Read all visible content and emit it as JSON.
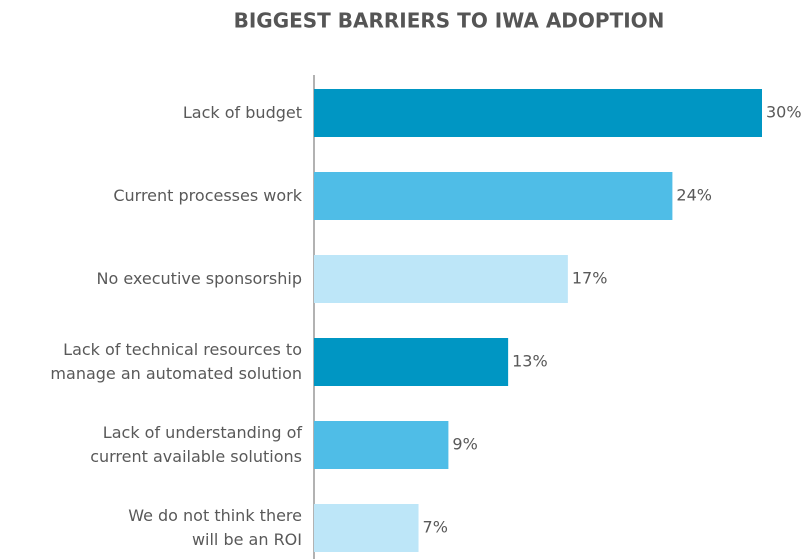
{
  "chart_data": {
    "type": "barh",
    "title": "BIGGEST BARRIERS TO IWA ADOPTION",
    "categories": [
      "Lack of budget",
      "Current processes work",
      "No executive sponsorship",
      "Lack of technical resources to\nmanage an automated solution",
      "Lack of understanding of\ncurrent available solutions",
      "We do not think there\nwill be an ROI"
    ],
    "values": [
      30,
      24,
      17,
      13,
      9,
      7
    ],
    "value_labels": [
      "30%",
      "24%",
      "17%",
      "13%",
      "9%",
      "7%"
    ],
    "colors": [
      "#0096c3",
      "#4fbde7",
      "#bde6f8",
      "#0096c3",
      "#4fbde7",
      "#bde6f8"
    ],
    "xlim": [
      0,
      30
    ]
  }
}
